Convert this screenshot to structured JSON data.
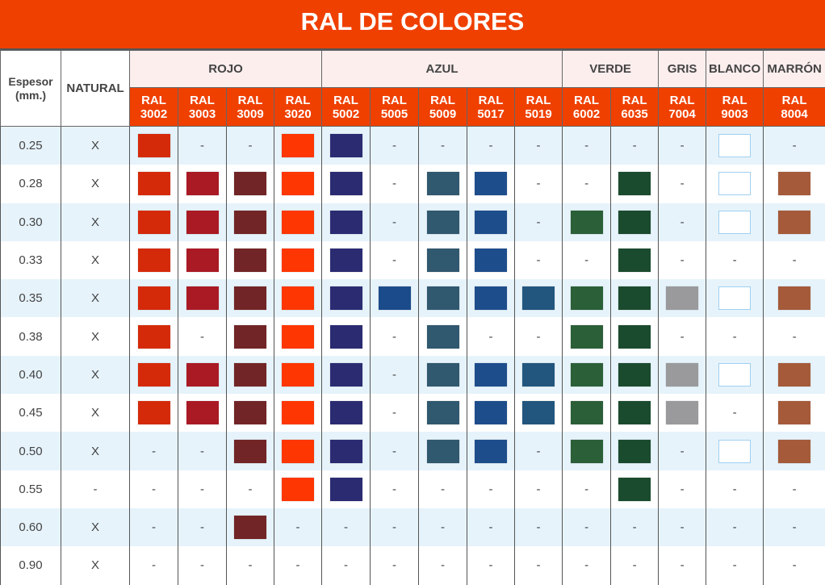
{
  "title": "RAL DE COLORES",
  "headers": {
    "thickness": "Espesor\n(mm.)",
    "natural": "NATURAL"
  },
  "groups": [
    {
      "label": "ROJO",
      "span": 4
    },
    {
      "label": "AZUL",
      "span": 5
    },
    {
      "label": "VERDE",
      "span": 2
    },
    {
      "label": "GRIS",
      "span": 1
    },
    {
      "label": "BLANCO",
      "span": 1
    },
    {
      "label": "MARRÓN",
      "span": 1
    }
  ],
  "codes": [
    {
      "label": "RAL",
      "num": "3002",
      "color": "#d42a0a"
    },
    {
      "label": "RAL",
      "num": "3003",
      "color": "#a91a25"
    },
    {
      "label": "RAL",
      "num": "3009",
      "color": "#722526"
    },
    {
      "label": "RAL",
      "num": "3020",
      "color": "#fd3602"
    },
    {
      "label": "RAL",
      "num": "5002",
      "color": "#2b2b72"
    },
    {
      "label": "RAL",
      "num": "5005",
      "color": "#1b4b8a"
    },
    {
      "label": "RAL",
      "num": "5009",
      "color": "#30586f"
    },
    {
      "label": "RAL",
      "num": "5017",
      "color": "#1e4d8c"
    },
    {
      "label": "RAL",
      "num": "5019",
      "color": "#22567e"
    },
    {
      "label": "RAL",
      "num": "6002",
      "color": "#2b5f38"
    },
    {
      "label": "RAL",
      "num": "6035",
      "color": "#1b4b2e"
    },
    {
      "label": "RAL",
      "num": "7004",
      "color": "#9a9a9c"
    },
    {
      "label": "RAL",
      "num": "9003",
      "color": "#ffffff"
    },
    {
      "label": "RAL",
      "num": "8004",
      "color": "#a55a3a"
    }
  ],
  "rows": [
    {
      "thickness": "0.25",
      "natural": "X",
      "available": [
        1,
        0,
        0,
        1,
        1,
        0,
        0,
        0,
        0,
        0,
        0,
        0,
        1,
        0
      ]
    },
    {
      "thickness": "0.28",
      "natural": "X",
      "available": [
        1,
        1,
        1,
        1,
        1,
        0,
        1,
        1,
        0,
        0,
        1,
        0,
        1,
        1
      ]
    },
    {
      "thickness": "0.30",
      "natural": "X",
      "available": [
        1,
        1,
        1,
        1,
        1,
        0,
        1,
        1,
        0,
        1,
        1,
        0,
        1,
        1
      ]
    },
    {
      "thickness": "0.33",
      "natural": "X",
      "available": [
        1,
        1,
        1,
        1,
        1,
        0,
        1,
        1,
        0,
        0,
        1,
        0,
        0,
        0
      ]
    },
    {
      "thickness": "0.35",
      "natural": "X",
      "available": [
        1,
        1,
        1,
        1,
        1,
        1,
        1,
        1,
        1,
        1,
        1,
        1,
        1,
        1
      ]
    },
    {
      "thickness": "0.38",
      "natural": "X",
      "available": [
        1,
        0,
        1,
        1,
        1,
        0,
        1,
        0,
        0,
        1,
        1,
        0,
        0,
        0
      ]
    },
    {
      "thickness": "0.40",
      "natural": "X",
      "available": [
        1,
        1,
        1,
        1,
        1,
        0,
        1,
        1,
        1,
        1,
        1,
        1,
        1,
        1
      ]
    },
    {
      "thickness": "0.45",
      "natural": "X",
      "available": [
        1,
        1,
        1,
        1,
        1,
        0,
        1,
        1,
        1,
        1,
        1,
        1,
        0,
        1
      ]
    },
    {
      "thickness": "0.50",
      "natural": "X",
      "available": [
        0,
        0,
        1,
        1,
        1,
        0,
        1,
        1,
        0,
        1,
        1,
        0,
        1,
        1
      ]
    },
    {
      "thickness": "0.55",
      "natural": "-",
      "available": [
        0,
        0,
        0,
        1,
        1,
        0,
        0,
        0,
        0,
        0,
        1,
        0,
        0,
        0
      ]
    },
    {
      "thickness": "0.60",
      "natural": "X",
      "available": [
        0,
        0,
        1,
        0,
        0,
        0,
        0,
        0,
        0,
        0,
        0,
        0,
        0,
        0
      ]
    },
    {
      "thickness": "0.90",
      "natural": "X",
      "available": [
        0,
        0,
        0,
        0,
        0,
        0,
        0,
        0,
        0,
        0,
        0,
        0,
        0,
        0
      ]
    }
  ],
  "unavailable_mark": "-"
}
